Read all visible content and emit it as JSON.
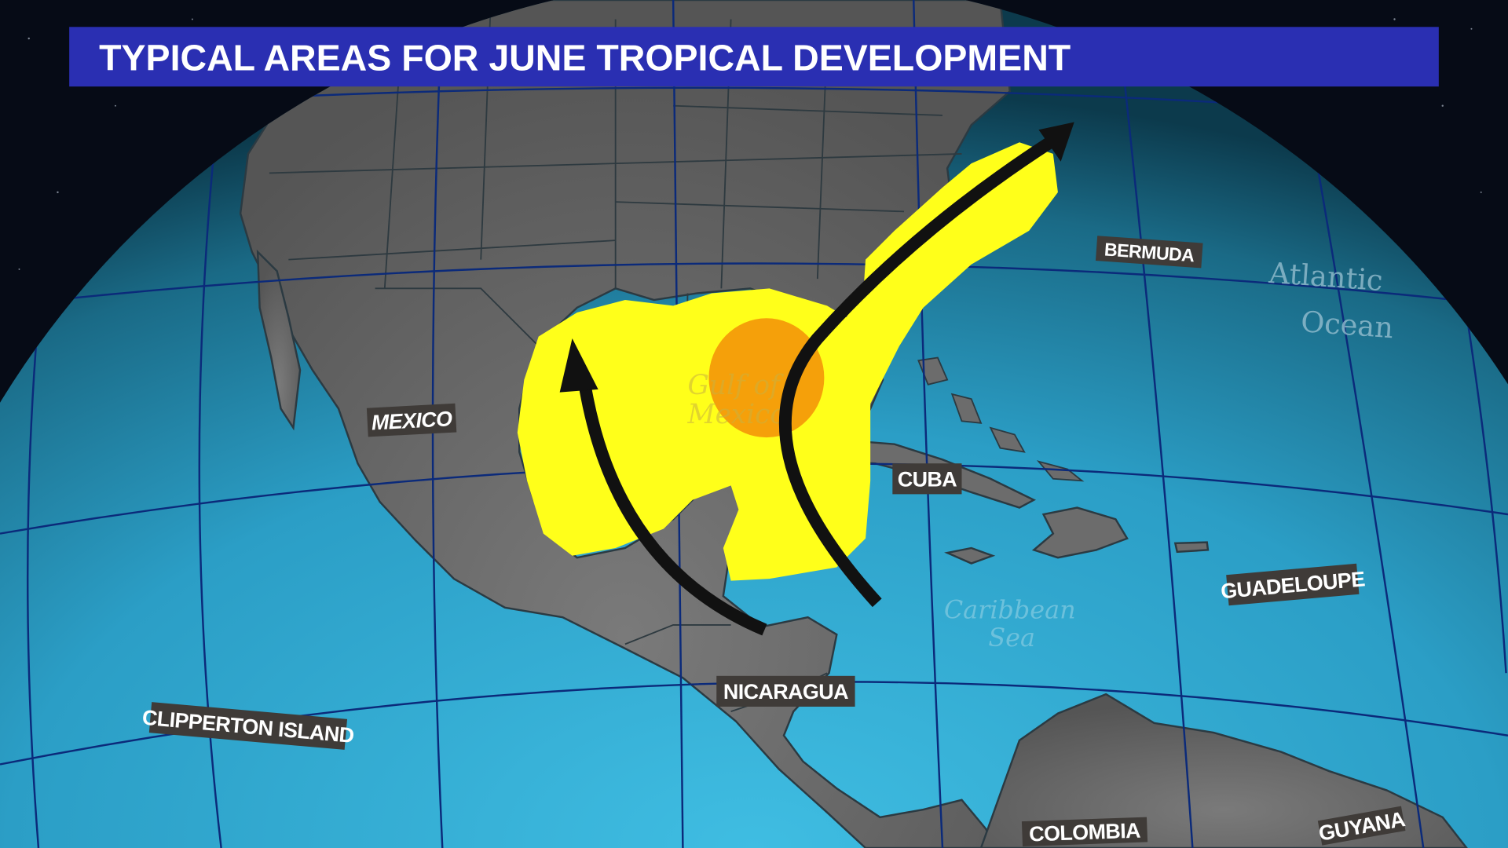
{
  "title": "TYPICAL AREAS FOR JUNE TROPICAL DEVELOPMENT",
  "colors": {
    "title_bar": "#2a2fb2",
    "land": "#6a6a6a",
    "ocean": "#35a9cf",
    "development_area": "#ffff1a",
    "high_development_area": "#f5a00a",
    "track_arrows": "#111111",
    "label_box": "#3f3b38"
  },
  "place_labels": {
    "mexico": "MEXICO",
    "cuba": "CUBA",
    "bermuda": "BERMUDA",
    "guadeloupe": "GUADELOUPE",
    "nicaragua": "NICARAGUA",
    "clipperton": "CLIPPERTON ISLAND",
    "colombia": "COLOMBIA",
    "guyana": "GUYANA"
  },
  "water_labels": {
    "gulf_line1": "Gulf of",
    "gulf_line2": "Mexico",
    "caribbean_line1": "Caribbean",
    "caribbean_line2": "Sea",
    "atlantic_line1": "Atlantic",
    "atlantic_line2": "Ocean"
  },
  "tracks": [
    {
      "name": "gulf-northward-track",
      "icon": "arrow-up-icon"
    },
    {
      "name": "caribbean-to-atlantic-track",
      "icon": "arrow-northeast-icon"
    }
  ]
}
